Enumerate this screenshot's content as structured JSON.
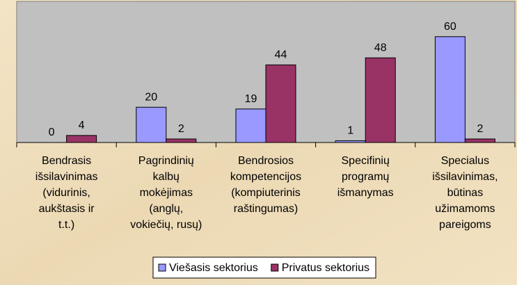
{
  "chart_data": {
    "type": "bar",
    "categories": [
      [
        "Bendrasis",
        "išsilavinimas",
        "(vidurinis,",
        "aukštasis ir",
        "t.t.)"
      ],
      [
        "Pagrindinių",
        "kalbų",
        "mokėjimas",
        "(anglų,",
        "vokiečių, rusų)"
      ],
      [
        "Bendrosios",
        "kompetencijos",
        "(kompiuterinis",
        "raštingumas)"
      ],
      [
        "Specifinių",
        "programų",
        "išmanymas"
      ],
      [
        "Specialus",
        "išsilavinimas,",
        "būtinas",
        "užimamoms",
        "pareigoms"
      ]
    ],
    "series": [
      {
        "name": "Viešasis sektorius",
        "color": "#9999ff",
        "values": [
          0,
          20,
          19,
          1,
          60
        ]
      },
      {
        "name": "Privatus sektorius",
        "color": "#993366",
        "values": [
          4,
          2,
          44,
          48,
          2
        ]
      }
    ],
    "ylim": [
      0,
      80
    ],
    "plot_background": "#c0c0c0",
    "legend": "bottom"
  }
}
